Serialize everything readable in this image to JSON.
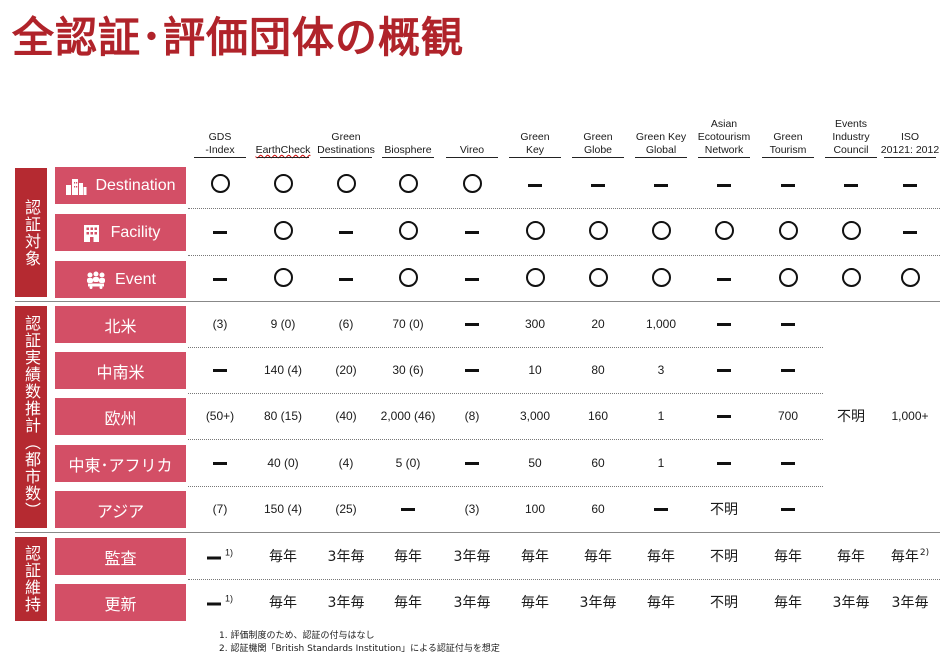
{
  "title": "全認証･評価団体の概観",
  "columns": [
    {
      "label": "GDS\n-Index"
    },
    {
      "label": "EarthCheck"
    },
    {
      "label": "Green\nDestinations"
    },
    {
      "label": "Biosphere"
    },
    {
      "label": "Vireo"
    },
    {
      "label": "Green\nKey"
    },
    {
      "label": "Green\nGlobe"
    },
    {
      "label": "Green Key\nGlobal"
    },
    {
      "label": "Asian\nEcotourism\nNetwork"
    },
    {
      "label": "Green\nTourism"
    },
    {
      "label": "Events\nIndustry\nCouncil"
    },
    {
      "label": "ISO\n20121: 2012"
    }
  ],
  "groups": [
    {
      "label": "認証対象",
      "rows": [
        {
          "label": "Destination",
          "icon": "city-icon",
          "cells": [
            "circle",
            "circle",
            "circle",
            "circle",
            "circle",
            "dash",
            "dash",
            "dash",
            "dash",
            "dash",
            "dash",
            "dash"
          ]
        },
        {
          "label": "Facility",
          "icon": "building-icon",
          "cells": [
            "dash",
            "circle",
            "dash",
            "circle",
            "dash",
            "circle",
            "circle",
            "circle",
            "circle",
            "circle",
            "circle",
            "dash"
          ]
        },
        {
          "label": "Event",
          "icon": "people-icon",
          "cells": [
            "dash",
            "circle",
            "dash",
            "circle",
            "dash",
            "circle",
            "circle",
            "circle",
            "dash",
            "circle",
            "circle",
            "circle"
          ]
        }
      ]
    },
    {
      "label": "認証実績数推計（都市数）",
      "rows": [
        {
          "label": "北米",
          "cells": [
            "(3)",
            "9 (0)",
            "(6)",
            "70 (0)",
            "dash",
            "300",
            "20",
            "1,000",
            "dash",
            "dash",
            "",
            ""
          ]
        },
        {
          "label": "中南米",
          "cells": [
            "dash",
            "140 (4)",
            "(20)",
            "30 (6)",
            "dash",
            "10",
            "80",
            "3",
            "dash",
            "dash",
            "",
            ""
          ]
        },
        {
          "label": "欧州",
          "cells": [
            "(50+)",
            "80 (15)",
            "(40)",
            "2,000 (46)",
            "(8)",
            "3,000",
            "160",
            "1",
            "dash",
            "700",
            "不明",
            "1,000+"
          ]
        },
        {
          "label": "中東･アフリカ",
          "cells": [
            "dash",
            "40 (0)",
            "(4)",
            "5 (0)",
            "dash",
            "50",
            "60",
            "1",
            "dash",
            "dash",
            "",
            ""
          ]
        },
        {
          "label": "アジア",
          "cells": [
            "(7)",
            "150 (4)",
            "(25)",
            "dash",
            "(3)",
            "100",
            "60",
            "dash",
            "不明",
            "dash",
            "",
            ""
          ]
        }
      ]
    },
    {
      "label": "認証維持",
      "rows": [
        {
          "label": "監査",
          "cells": [
            "dash1",
            "毎年",
            "3年毎",
            "毎年",
            "3年毎",
            "毎年",
            "毎年",
            "毎年",
            "不明",
            "毎年",
            "毎年",
            "毎年2"
          ]
        },
        {
          "label": "更新",
          "cells": [
            "dash1",
            "毎年",
            "3年毎",
            "毎年",
            "3年毎",
            "毎年",
            "3年毎",
            "毎年",
            "不明",
            "毎年",
            "3年毎",
            "3年毎"
          ]
        }
      ]
    }
  ],
  "notes": {
    "sup1": "1)",
    "sup2": "2)",
    "footnote1": "1. 評価制度のため、認証の付与はなし",
    "footnote2": "2. 認証機関「British Standards Institution」による認証付与を想定"
  },
  "colors": {
    "title": "#b0232a",
    "group_bar": "#b52a31",
    "row_label": "#d34f66"
  }
}
